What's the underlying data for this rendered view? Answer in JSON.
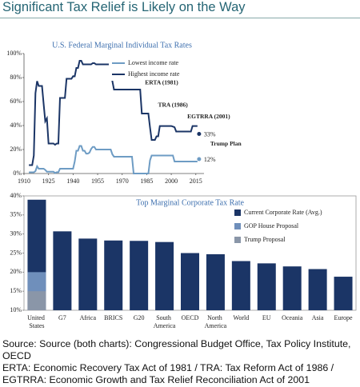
{
  "title": "Significant Tax Relief is Likely on the Way",
  "chart_data": [
    {
      "type": "line",
      "title": "U.S. Federal Marginal Individual Tax Rates",
      "x": [
        1913,
        1914,
        1915,
        1916,
        1917,
        1918,
        1919,
        1920,
        1921,
        1922,
        1923,
        1924,
        1925,
        1926,
        1927,
        1928,
        1929,
        1930,
        1931,
        1932,
        1933,
        1934,
        1935,
        1936,
        1937,
        1938,
        1939,
        1940,
        1941,
        1942,
        1943,
        1944,
        1945,
        1946,
        1947,
        1948,
        1949,
        1950,
        1951,
        1952,
        1953,
        1954,
        1955,
        1956,
        1957,
        1958,
        1959,
        1960,
        1961,
        1962,
        1963,
        1964,
        1965,
        1966,
        1967,
        1968,
        1969,
        1970,
        1971,
        1972,
        1973,
        1974,
        1975,
        1976,
        1977,
        1978,
        1979,
        1980,
        1981,
        1982,
        1983,
        1984,
        1985,
        1986,
        1987,
        1988,
        1989,
        1990,
        1991,
        1992,
        1993,
        1994,
        1995,
        1996,
        1997,
        1998,
        1999,
        2000,
        2001,
        2002,
        2003,
        2004,
        2005,
        2006,
        2007,
        2008,
        2009,
        2010,
        2011,
        2012,
        2013,
        2014,
        2015,
        2016
      ],
      "series": [
        {
          "name": "Lowest income rate",
          "color": "#6e9cc4",
          "values": [
            1,
            1,
            1,
            1,
            2,
            6,
            4,
            4,
            4,
            4,
            3,
            1.5,
            1.5,
            1.5,
            1.5,
            1.5,
            0.4,
            1.1,
            1.1,
            4,
            4,
            4,
            4,
            4,
            4,
            4,
            4,
            4,
            10,
            19,
            19,
            23,
            23,
            19,
            19,
            16.6,
            16.6,
            17.4,
            20.4,
            22.2,
            22.2,
            20,
            20,
            20,
            20,
            20,
            20,
            20,
            20,
            20,
            20,
            16,
            14,
            14,
            14,
            14,
            14,
            14,
            14,
            14,
            14,
            14,
            14,
            14,
            0,
            0,
            0,
            0,
            0,
            0,
            0,
            0,
            0,
            0,
            11,
            15,
            15,
            15,
            15,
            15,
            15,
            15,
            15,
            15,
            15,
            15,
            15,
            15,
            15,
            10,
            10,
            10,
            10,
            10,
            10,
            10,
            10,
            10,
            10,
            10,
            10,
            10,
            10,
            10
          ]
        },
        {
          "name": "Highest income rate",
          "color": "#1b3566",
          "values": [
            7,
            7,
            7,
            15,
            67,
            77,
            73,
            73,
            73,
            58,
            43.5,
            46,
            25,
            25,
            25,
            25,
            24,
            25,
            25,
            63,
            63,
            63,
            63,
            79,
            79,
            79,
            79,
            81.1,
            81,
            88,
            88,
            94,
            94,
            91,
            91,
            91,
            91,
            91,
            91,
            92,
            92,
            91,
            91,
            91,
            91,
            91,
            91,
            91,
            91,
            91,
            91,
            77,
            70,
            70,
            70,
            70,
            70,
            70,
            70,
            70,
            70,
            70,
            70,
            70,
            70,
            70,
            70,
            70,
            70,
            50,
            50,
            50,
            50,
            50,
            38.5,
            28,
            28,
            28,
            31,
            31,
            39.6,
            39.6,
            39.6,
            39.6,
            39.6,
            39.6,
            39.6,
            39.6,
            39.1,
            38.6,
            35,
            35,
            35,
            35,
            35,
            35,
            35,
            35,
            35,
            35,
            39.6,
            39.6,
            39.6,
            39.6
          ]
        }
      ],
      "annotations": [
        {
          "text": "ERTA (1981)",
          "x": 1981
        },
        {
          "text": "TRA (1986)",
          "x": 1986
        },
        {
          "text": "EGTRRA (2001)",
          "x": 2001
        }
      ],
      "trump_plan": {
        "label": "Trump Plan",
        "x": 2017,
        "values": [
          33,
          12
        ],
        "value_labels": [
          "33%",
          "12%"
        ],
        "colors": [
          "#1b3566",
          "#6e9cc4"
        ]
      },
      "xlim": [
        1910,
        2020
      ],
      "xticks": [
        1910,
        1925,
        1940,
        1955,
        1970,
        1985,
        2000,
        2015
      ],
      "ylim": [
        0,
        100
      ],
      "yticks": [
        {
          "value": 0,
          "label": "0%"
        },
        {
          "value": 20,
          "label": "20%"
        },
        {
          "value": 40,
          "label": "40%"
        },
        {
          "value": 60,
          "label": "60%"
        },
        {
          "value": 80,
          "label": "80%"
        },
        {
          "value": 100,
          "label": "100%"
        }
      ]
    },
    {
      "type": "bar",
      "title": "Top Marginal Corporate Tax Rate",
      "categories": [
        "United States",
        "G7",
        "Africa",
        "BRICS",
        "G20",
        "South America",
        "OECD",
        "North America",
        "World",
        "EU",
        "Oceania",
        "Asia",
        "Europe"
      ],
      "series": [
        {
          "name": "Current Corporate Rate (Avg.)",
          "color": "#1b3566",
          "values": [
            39,
            30.7,
            28.8,
            28.3,
            28.2,
            27.9,
            25,
            24.7,
            22.9,
            22.3,
            21.5,
            20.8,
            18.8
          ]
        },
        {
          "name": "GOP House Proposal",
          "color": "#6f8fbb",
          "values": [
            20,
            null,
            null,
            null,
            null,
            null,
            null,
            null,
            null,
            null,
            null,
            null,
            null
          ]
        },
        {
          "name": "Trump Proposal",
          "color": "#8a96a8",
          "values": [
            15,
            null,
            null,
            null,
            null,
            null,
            null,
            null,
            null,
            null,
            null,
            null,
            null
          ]
        }
      ],
      "ylim": [
        10,
        40
      ],
      "yticks": [
        {
          "value": 10,
          "label": "10%"
        },
        {
          "value": 15,
          "label": "15%"
        },
        {
          "value": 20,
          "label": "20%"
        },
        {
          "value": 25,
          "label": "25%"
        },
        {
          "value": 30,
          "label": "30%"
        },
        {
          "value": 35,
          "label": "35%"
        },
        {
          "value": 40,
          "label": "40%"
        }
      ]
    }
  ],
  "notes": [
    "Source: Source (both charts): Congressional Budget Office, Tax Policy Institute, OECD",
    "ERTA: Economic Recovery Tax Act of 1981 / TRA: Tax Reform Act of 1986 / EGTRRA: Economic Growth and Tax Relief Reconciliation Act of 2001"
  ]
}
